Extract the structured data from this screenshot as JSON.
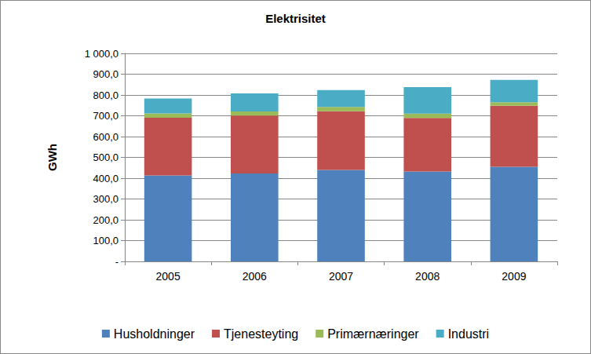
{
  "chart_data": {
    "type": "bar",
    "title": "Elektrisitet",
    "y_label": "GWh",
    "categories": [
      "2005",
      "2006",
      "2007",
      "2008",
      "2009"
    ],
    "series": [
      {
        "name": "Husholdninger",
        "color": "#4f81bd",
        "values": [
          413,
          423,
          440,
          432,
          455
        ]
      },
      {
        "name": "Tjenesteyting",
        "color": "#c0504d",
        "values": [
          278,
          278,
          282,
          258,
          293
        ]
      },
      {
        "name": "Primærnæringer",
        "color": "#9bbb59",
        "values": [
          20,
          20,
          20,
          20,
          17
        ]
      },
      {
        "name": "Industri",
        "color": "#4bacc6",
        "values": [
          72,
          87,
          82,
          128,
          108
        ]
      }
    ],
    "stacked": true,
    "ylim": [
      0,
      1000
    ],
    "yticks": [
      {
        "value": 0,
        "label": "-"
      },
      {
        "value": 100,
        "label": "100,0"
      },
      {
        "value": 200,
        "label": "200,0"
      },
      {
        "value": 300,
        "label": "300,0"
      },
      {
        "value": 400,
        "label": "400,0"
      },
      {
        "value": 500,
        "label": "500,0"
      },
      {
        "value": 600,
        "label": "600,0"
      },
      {
        "value": 700,
        "label": "700,0"
      },
      {
        "value": 800,
        "label": "800,0"
      },
      {
        "value": 900,
        "label": "900,0"
      },
      {
        "value": 1000,
        "label": "1 000,0"
      }
    ],
    "grid": true,
    "legend": "bottom"
  }
}
